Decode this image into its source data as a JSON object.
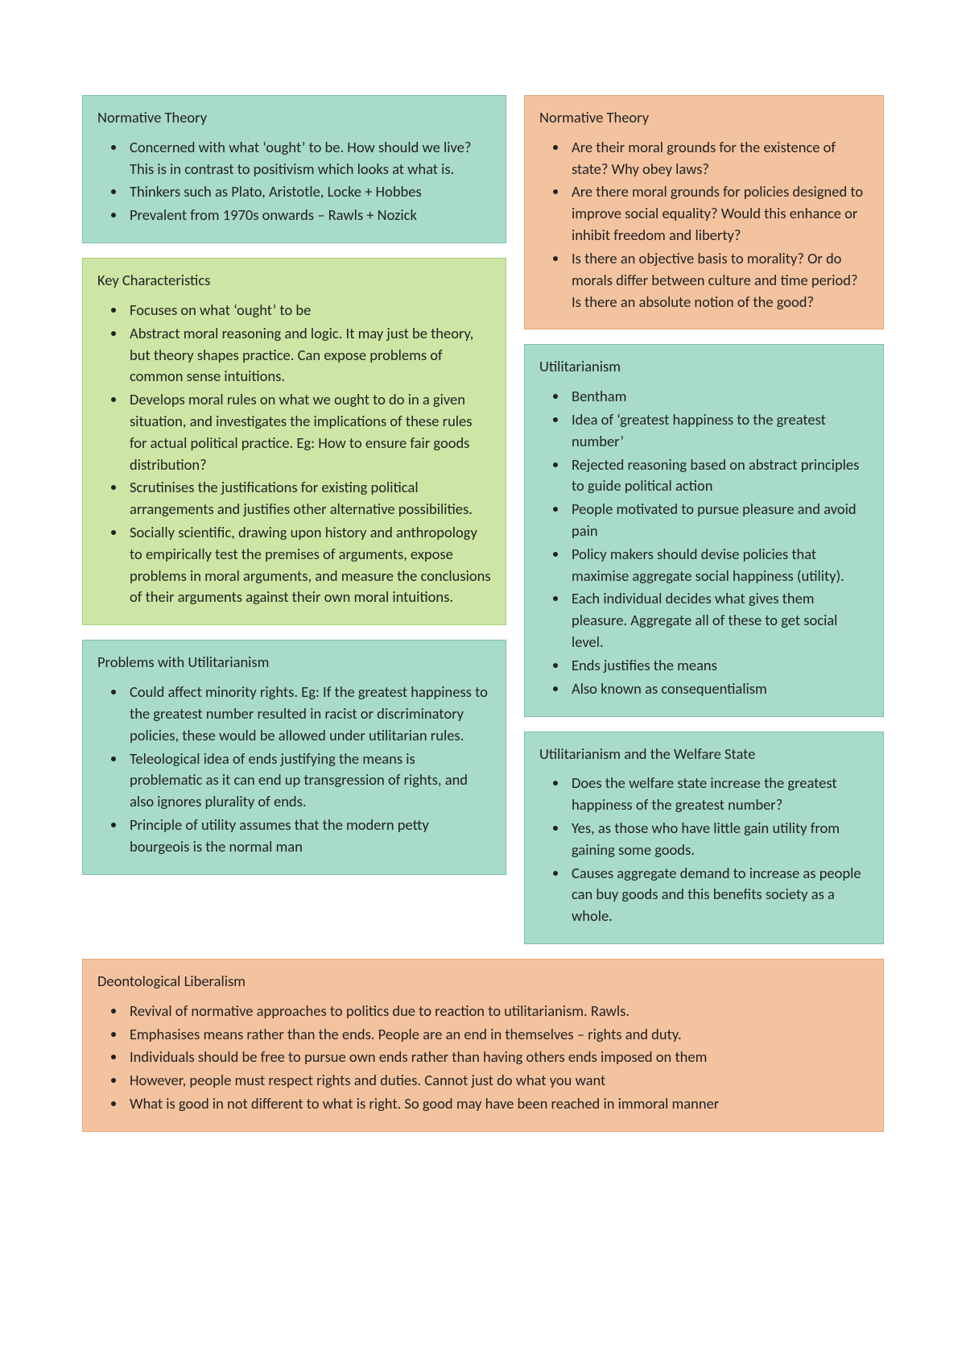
{
  "colors": {
    "teal_bg": "#a9dbc9",
    "teal_border": "#7bbfad",
    "green_bg": "#cde6a6",
    "green_border": "#a9cf7b",
    "orange_bg": "#f3c3a0",
    "orange_border": "#e2a879",
    "page_bg": "#ffffff",
    "text": "#222222"
  },
  "left": {
    "normative": {
      "title": "Normative Theory",
      "items": [
        "Concerned with what ‘ought’ to be. How should we live? This is in contrast to positivism which looks at what is.",
        "Thinkers such as Plato, Aristotle, Locke + Hobbes",
        "Prevalent from 1970s onwards – Rawls + Nozick"
      ]
    },
    "key": {
      "title": "Key Characteristics",
      "items": [
        "Focuses on what ‘ought’ to be",
        "Abstract moral reasoning and logic. It may just be theory, but theory shapes practice. Can expose problems of common sense intuitions.",
        "Develops moral rules on what we ought to do in a given situation, and investigates the implications of these rules for actual political practice. Eg: How to ensure fair goods distribution?",
        "Scrutinises the justifications for existing political arrangements and justifies other alternative possibilities.",
        "Socially scientific, drawing upon history and anthropology to empirically test the premises of arguments, expose problems in moral arguments, and measure the conclusions of their arguments against their own moral intuitions."
      ]
    },
    "problems": {
      "title": "Problems with Utilitarianism",
      "items": [
        "Could affect minority rights. Eg: If the greatest happiness to the greatest number resulted in racist or discriminatory policies, these would be allowed under utilitarian rules.",
        "Teleological idea of ends justifying the means is problematic as it can end up transgression of rights, and also ignores plurality of ends.",
        "Principle of utility assumes that the modern petty bourgeois is the normal man"
      ]
    }
  },
  "right": {
    "normative": {
      "title": "Normative Theory",
      "items": [
        "Are their moral grounds for the existence of state? Why obey laws?",
        "Are there moral grounds for policies designed to improve social equality? Would this enhance or inhibit freedom and liberty?",
        "Is there an objective basis to morality? Or do morals differ between culture and time period? Is there an absolute notion of the good?"
      ]
    },
    "util": {
      "title": "Utilitarianism",
      "items": [
        "Bentham",
        "Idea of ‘greatest happiness to the greatest number’",
        "Rejected reasoning based on abstract principles to guide political action",
        "People motivated to pursue pleasure and avoid pain",
        "Policy makers should devise policies that maximise aggregate social happiness (utility).",
        "Each individual decides what gives them pleasure. Aggregate all of these to get social level.",
        "Ends justifies the means",
        "Also known as consequentialism"
      ]
    },
    "welfare": {
      "title": "Utilitarianism and the Welfare State",
      "items": [
        "Does the welfare state increase the greatest happiness of the greatest number?",
        "Yes, as those who have little gain utility from gaining some goods.",
        "Causes aggregate demand to increase as people can buy goods and this benefits society as a whole."
      ]
    }
  },
  "deon": {
    "title": "Deontological Liberalism",
    "items": [
      "Revival of normative approaches to politics due to reaction to utilitarianism. Rawls.",
      "Emphasises means rather than the ends. People are an end in themselves – rights and duty.",
      "Individuals should be free to pursue own ends rather than having others ends imposed on them",
      "However, people must respect rights and duties. Cannot just do what you want",
      "What is good in not different to what is right. So good may have been reached in immoral manner"
    ]
  }
}
